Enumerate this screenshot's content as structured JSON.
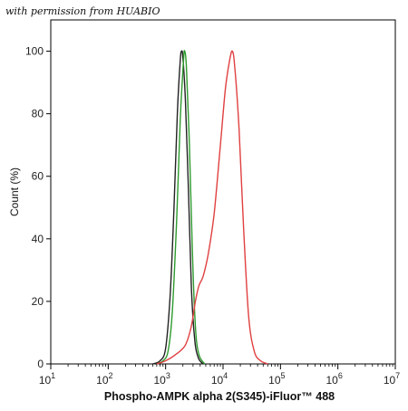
{
  "watermark": "with permission from HUABIO",
  "chart_data": {
    "type": "line",
    "xlabel": "Phospho-AMPK alpha 2(S345)-iFluor™ 488",
    "ylabel": "Count  (%)",
    "x_scale": "log",
    "xlim": [
      10,
      10000000
    ],
    "ylim": [
      0,
      110
    ],
    "x_tick_labels": [
      {
        "base": "10",
        "exp": "1"
      },
      {
        "base": "10",
        "exp": "2"
      },
      {
        "base": "10",
        "exp": "3"
      },
      {
        "base": "10",
        "exp": "4"
      },
      {
        "base": "10",
        "exp": "5"
      },
      {
        "base": "10",
        "exp": "6"
      },
      {
        "base": "10",
        "exp": "7"
      }
    ],
    "y_ticks": [
      0,
      20,
      40,
      60,
      80,
      100
    ],
    "y_tick_labels": [
      "0",
      "20",
      "40",
      "60",
      "80",
      "100"
    ],
    "grid": false,
    "series": [
      {
        "color": "#222222",
        "points": [
          [
            600,
            0
          ],
          [
            800,
            1
          ],
          [
            1000,
            5
          ],
          [
            1200,
            22
          ],
          [
            1400,
            50
          ],
          [
            1600,
            80
          ],
          [
            1800,
            97
          ],
          [
            1900,
            100
          ],
          [
            2000,
            98
          ],
          [
            2200,
            85
          ],
          [
            2500,
            55
          ],
          [
            2800,
            25
          ],
          [
            3200,
            8
          ],
          [
            3700,
            2
          ],
          [
            4500,
            0
          ]
        ]
      },
      {
        "color": "#2e9a2e",
        "points": [
          [
            700,
            0
          ],
          [
            900,
            1
          ],
          [
            1100,
            4
          ],
          [
            1300,
            16
          ],
          [
            1550,
            45
          ],
          [
            1800,
            78
          ],
          [
            2050,
            97
          ],
          [
            2150,
            100
          ],
          [
            2300,
            95
          ],
          [
            2600,
            70
          ],
          [
            2900,
            38
          ],
          [
            3300,
            12
          ],
          [
            3800,
            3
          ],
          [
            4800,
            0
          ]
        ]
      },
      {
        "color": "#e04040",
        "points": [
          [
            700,
            0
          ],
          [
            1000,
            1
          ],
          [
            1500,
            3
          ],
          [
            2200,
            6
          ],
          [
            2800,
            12
          ],
          [
            3300,
            20
          ],
          [
            3800,
            25
          ],
          [
            4500,
            28
          ],
          [
            5500,
            35
          ],
          [
            7000,
            48
          ],
          [
            9000,
            70
          ],
          [
            11000,
            88
          ],
          [
            13000,
            97
          ],
          [
            14500,
            100
          ],
          [
            16000,
            95
          ],
          [
            19000,
            75
          ],
          [
            23000,
            42
          ],
          [
            28000,
            15
          ],
          [
            35000,
            4
          ],
          [
            45000,
            1
          ],
          [
            60000,
            0
          ]
        ]
      }
    ]
  }
}
